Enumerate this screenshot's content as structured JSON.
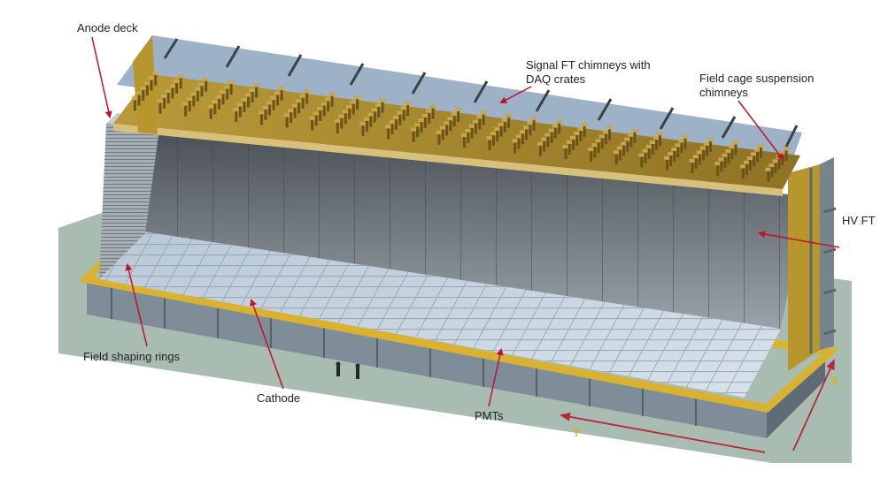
{
  "labels": {
    "anode_deck": "Anode deck",
    "signal_ft_line1": "Signal FT chimneys with",
    "signal_ft_line2": "DAQ crates",
    "field_cage_line1": "Field cage suspension",
    "field_cage_line2": "chimneys",
    "hv_ft": "HV FT",
    "field_shaping_rings": "Field shaping rings",
    "cathode": "Cathode",
    "pmts": "PMTs",
    "axis_x": "X",
    "axis_y": "Y"
  },
  "colors": {
    "floor": "#a9bcb2",
    "gold": "#b8962e",
    "steel": "#8a9aa8",
    "roof": "#9db2c6",
    "callout_arrow": "#c0102a",
    "axis_label": "#e0b000",
    "axis_arrow": "#b8283a"
  }
}
